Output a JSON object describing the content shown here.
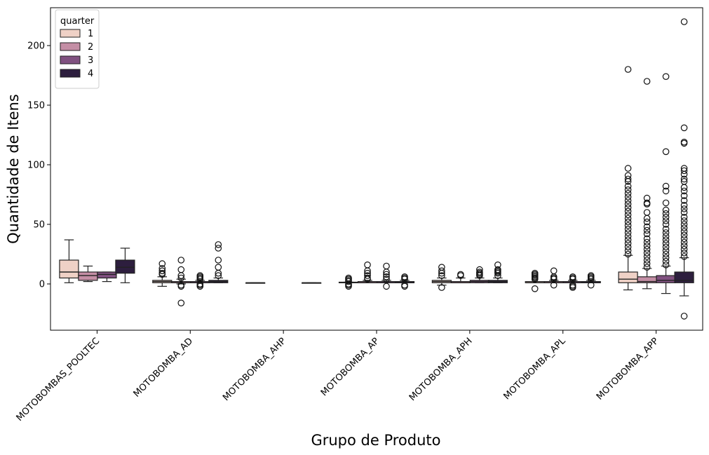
{
  "chart_data": {
    "type": "box",
    "title": "",
    "xlabel": "Grupo de Produto",
    "ylabel": "Quantidade de Itens",
    "ylim": [
      -38,
      229
    ],
    "yticks": [
      0,
      50,
      100,
      150,
      200
    ],
    "grid": false,
    "legend": {
      "title": "quarter",
      "position": "top-left"
    },
    "categories": [
      "MOTOBOMBAS_POOLTEC",
      "MOTOBOMBA_AD",
      "MOTOBOMBA_AHP",
      "MOTOBOMBA_AP",
      "MOTOBOMBA_APH",
      "MOTOBOMBA_APL",
      "MOTOBOMBA_APP"
    ],
    "series": [
      {
        "name": "1",
        "color": "#efd1c6",
        "boxes": [
          {
            "q1": 5,
            "median": 10,
            "q3": 20,
            "wlow": 1,
            "whigh": 37,
            "outliers": []
          },
          {
            "q1": 1,
            "median": 2,
            "q3": 3,
            "wlow": -2,
            "whigh": 6,
            "outliers": [
              8,
              9,
              11,
              13,
              17
            ]
          },
          {
            "q1": 1,
            "median": 1,
            "q3": 1,
            "wlow": 1,
            "whigh": 1,
            "outliers": []
          },
          {
            "q1": 1,
            "median": 1,
            "q3": 1.5,
            "wlow": 1,
            "whigh": 1.5,
            "outliers": [
              -2,
              -1,
              0,
              2,
              3,
              4,
              5
            ]
          },
          {
            "q1": 1,
            "median": 2,
            "q3": 3,
            "wlow": -1,
            "whigh": 5,
            "outliers": [
              -3,
              7,
              9,
              11,
              14
            ]
          },
          {
            "q1": 1,
            "median": 1,
            "q3": 2,
            "wlow": 1,
            "whigh": 2,
            "outliers": [
              -4,
              4,
              5,
              6,
              7,
              8,
              9
            ]
          },
          {
            "q1": 1,
            "median": 4,
            "q3": 10,
            "wlow": -5,
            "whigh": 24,
            "outliers": [
              25,
              28,
              31,
              34,
              37,
              40,
              43,
              46,
              49,
              52,
              55,
              58,
              61,
              64,
              67,
              70,
              73,
              76,
              79,
              82,
              86,
              88,
              91,
              97,
              180
            ]
          }
        ]
      },
      {
        "name": "2",
        "color": "#c48ea5",
        "boxes": [
          {
            "q1": 3,
            "median": 7,
            "q3": 10,
            "wlow": 2,
            "whigh": 15,
            "outliers": []
          },
          {
            "q1": 1,
            "median": 1,
            "q3": 2,
            "wlow": 0,
            "whigh": 4,
            "outliers": [
              -16,
              -2,
              -1,
              5,
              7,
              12,
              20
            ]
          },
          null,
          {
            "q1": 1,
            "median": 1,
            "q3": 2,
            "wlow": 1,
            "whigh": 3,
            "outliers": [
              4,
              5,
              7,
              9,
              11,
              16
            ]
          },
          {
            "q1": 1,
            "median": 1,
            "q3": 2,
            "wlow": 1,
            "whigh": 5,
            "outliers": [
              7,
              8
            ]
          },
          {
            "q1": 1,
            "median": 1,
            "q3": 2,
            "wlow": 1,
            "whigh": 3,
            "outliers": [
              -1,
              4,
              5,
              6,
              11
            ]
          },
          {
            "q1": 1,
            "median": 2,
            "q3": 6,
            "wlow": -4,
            "whigh": 13,
            "outliers": [
              14,
              17,
              20,
              23,
              26,
              29,
              32,
              35,
              38,
              42,
              45,
              48,
              52,
              55,
              60,
              67,
              68,
              72,
              170
            ]
          }
        ]
      },
      {
        "name": "3",
        "color": "#805180",
        "boxes": [
          {
            "q1": 5,
            "median": 8,
            "q3": 10,
            "wlow": 2,
            "whigh": 10,
            "outliers": []
          },
          {
            "q1": 1,
            "median": 1,
            "q3": 2,
            "wlow": 1,
            "whigh": 3,
            "outliers": [
              -2,
              -1,
              0,
              4,
              5,
              6,
              7
            ]
          },
          null,
          {
            "q1": 1,
            "median": 1,
            "q3": 2,
            "wlow": 1,
            "whigh": 3,
            "outliers": [
              -2,
              4,
              6,
              8,
              10,
              15
            ]
          },
          {
            "q1": 1,
            "median": 2,
            "q3": 3,
            "wlow": 1,
            "whigh": 5,
            "outliers": [
              7,
              8,
              9,
              10,
              12
            ]
          },
          {
            "q1": 1,
            "median": 1,
            "q3": 2,
            "wlow": 1,
            "whigh": 3,
            "outliers": [
              -3,
              -2,
              -1,
              4,
              5,
              6
            ]
          },
          {
            "q1": 1,
            "median": 3,
            "q3": 7,
            "wlow": -8,
            "whigh": 15,
            "outliers": [
              16,
              19,
              22,
              25,
              28,
              31,
              34,
              37,
              40,
              43,
              46,
              50,
              53,
              56,
              59,
              62,
              68,
              78,
              82,
              111,
              174
            ]
          }
        ]
      },
      {
        "name": "4",
        "color": "#2d1e3e",
        "boxes": [
          {
            "q1": 9,
            "median": 14,
            "q3": 20,
            "wlow": 1,
            "whigh": 30,
            "outliers": []
          },
          {
            "q1": 1,
            "median": 2,
            "q3": 3,
            "wlow": 1,
            "whigh": 5,
            "outliers": [
              7,
              9,
              14,
              20,
              30,
              33
            ]
          },
          {
            "q1": 1,
            "median": 1,
            "q3": 1,
            "wlow": 1,
            "whigh": 1,
            "outliers": []
          },
          {
            "q1": 1,
            "median": 1,
            "q3": 2,
            "wlow": 1,
            "whigh": 3,
            "outliers": [
              -2,
              -1,
              4,
              5,
              6
            ]
          },
          {
            "q1": 1,
            "median": 2,
            "q3": 3,
            "wlow": 1,
            "whigh": 5,
            "outliers": [
              7,
              9,
              10,
              11,
              12,
              16
            ]
          },
          {
            "q1": 1,
            "median": 1,
            "q3": 2,
            "wlow": 1,
            "whigh": 3,
            "outliers": [
              -1,
              4,
              5,
              6,
              7
            ]
          },
          {
            "q1": 1,
            "median": 3,
            "q3": 10,
            "wlow": -10,
            "whigh": 22,
            "outliers": [
              -27,
              23,
              26,
              29,
              32,
              35,
              38,
              41,
              44,
              47,
              50,
              53,
              56,
              60,
              63,
              66,
              70,
              74,
              78,
              81,
              86,
              88,
              92,
              95,
              97,
              118,
              119,
              131,
              220
            ]
          }
        ]
      }
    ]
  }
}
